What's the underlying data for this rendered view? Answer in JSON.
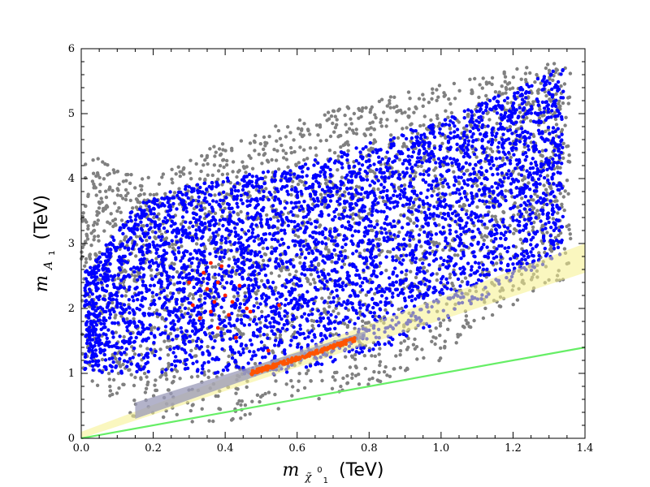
{
  "chart_data": {
    "type": "scatter",
    "xlabel": {
      "math": "m",
      "sub": "χ̃",
      "subsup": "0",
      "subsub": "1",
      "unit": "(TeV)"
    },
    "ylabel": {
      "math": "m",
      "sub": "A",
      "subsub": "1",
      "unit": "(TeV)"
    },
    "xlim": [
      0.0,
      1.4
    ],
    "ylim": [
      0,
      6
    ],
    "x_ticks": [
      "0.0",
      "0.2",
      "0.4",
      "0.6",
      "0.8",
      "1.0",
      "1.2",
      "1.4"
    ],
    "y_ticks": [
      "0",
      "1",
      "2",
      "3",
      "4",
      "5",
      "6"
    ],
    "grid": false,
    "legend": "none",
    "colors": {
      "grey": "#808080",
      "blue": "#0000ff",
      "red": "#ff2200",
      "orange": "#ff5500",
      "yellow_band": "#f5f08a",
      "grey_band": "#9a9ab8",
      "green_line": "#66ee66"
    },
    "series": [
      {
        "color": "grey",
        "regions": [
          {
            "x_range": [
              0.0,
              1.36
            ],
            "y_lower_at_x": [
              [
                0.0,
                1.0
              ],
              [
                0.15,
                0.3
              ],
              [
                0.4,
                0.2
              ],
              [
                0.8,
                0.8
              ],
              [
                1.0,
                1.2
              ],
              [
                1.3,
                2.4
              ]
            ],
            "y_upper_at_x": [
              [
                0.0,
                4.4
              ],
              [
                0.2,
                4.0
              ],
              [
                0.4,
                4.6
              ],
              [
                0.8,
                5.2
              ],
              [
                1.3,
                5.8
              ]
            ]
          }
        ]
      },
      {
        "color": "blue",
        "regions": [
          {
            "x_range": [
              0.01,
              1.34
            ],
            "y_lower_at_x": [
              [
                0.02,
                1.0
              ],
              [
                0.3,
                1.0
              ],
              [
                0.6,
                0.95
              ],
              [
                0.9,
                1.5
              ],
              [
                1.1,
                2.1
              ],
              [
                1.33,
                2.8
              ]
            ],
            "y_upper_at_x": [
              [
                0.02,
                2.6
              ],
              [
                0.15,
                3.6
              ],
              [
                0.3,
                3.9
              ],
              [
                0.6,
                4.2
              ],
              [
                1.0,
                4.9
              ],
              [
                1.33,
                5.7
              ]
            ]
          }
        ]
      },
      {
        "color": "red",
        "points": [
          [
            0.3,
            2.4
          ],
          [
            0.31,
            2.05
          ],
          [
            0.33,
            1.85
          ],
          [
            0.34,
            2.55
          ],
          [
            0.35,
            2.3
          ],
          [
            0.36,
            2.7
          ],
          [
            0.36,
            1.95
          ],
          [
            0.37,
            2.1
          ],
          [
            0.38,
            2.4
          ],
          [
            0.38,
            1.7
          ],
          [
            0.39,
            2.65
          ],
          [
            0.4,
            2.2
          ],
          [
            0.41,
            1.9
          ],
          [
            0.42,
            2.1
          ],
          [
            0.43,
            1.55
          ],
          [
            0.44,
            2.35
          ],
          [
            0.46,
            2.0
          ],
          [
            0.47,
            1.95
          ],
          [
            0.55,
            2.05
          ],
          [
            0.52,
            1.35
          ]
        ]
      },
      {
        "color": "orange",
        "line_band": {
          "x_range": [
            0.47,
            0.76
          ],
          "y_start": 1.0,
          "y_end": 1.52
        }
      }
    ],
    "bands": [
      {
        "name": "yellow",
        "x_range": [
          0.0,
          1.4
        ],
        "y_low": [
          0.0,
          2.55
        ],
        "y_high": [
          0.1,
          3.0
        ]
      },
      {
        "name": "grey",
        "x_range": [
          0.15,
          0.79
        ],
        "y_low": [
          0.3,
          1.55
        ],
        "y_high": [
          0.55,
          1.65
        ]
      }
    ],
    "lines": [
      {
        "name": "green",
        "x": [
          0.0,
          1.4
        ],
        "y": [
          0.0,
          1.4
        ]
      }
    ]
  }
}
